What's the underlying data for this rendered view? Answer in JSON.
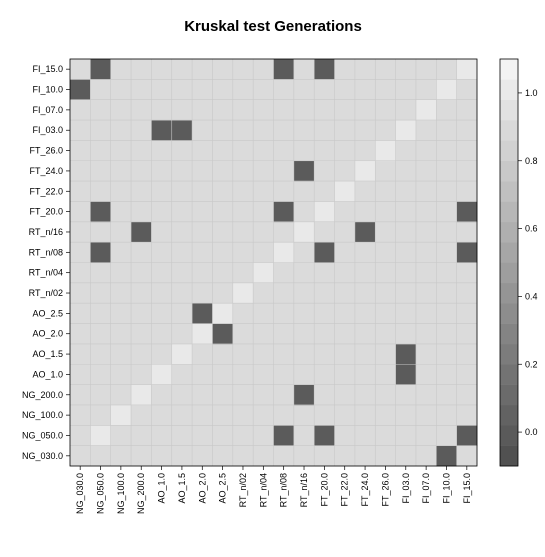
{
  "chart_data": {
    "type": "heatmap",
    "title": "Kruskal test Generations",
    "xlabel": "",
    "ylabel": "",
    "x_categories": [
      "NG_030.0",
      "NG_050.0",
      "NG_100.0",
      "NG_200.0",
      "AO_1.0",
      "AO_1.5",
      "AO_2.0",
      "AO_2.5",
      "RT_n/02",
      "RT_n/04",
      "RT_n/08",
      "RT_n/16",
      "FT_20.0",
      "FT_22.0",
      "FT_24.0",
      "FT_26.0",
      "FI_03.0",
      "FI_07.0",
      "FI_10.0",
      "FI_15.0"
    ],
    "y_categories": [
      "NG_030.0",
      "NG_050.0",
      "NG_100.0",
      "NG_200.0",
      "AO_1.0",
      "AO_1.5",
      "AO_2.0",
      "AO_2.5",
      "RT_n/02",
      "RT_n/04",
      "RT_n/08",
      "RT_n/16",
      "FT_20.0",
      "FT_22.0",
      "FT_24.0",
      "FT_26.0",
      "FI_03.0",
      "FI_07.0",
      "FI_10.0",
      "FI_15.0"
    ],
    "background_value": 0.9,
    "cells": [
      {
        "x": "NG_050.0",
        "y": "NG_050.0",
        "value": 1.0
      },
      {
        "x": "NG_100.0",
        "y": "NG_100.0",
        "value": 1.0
      },
      {
        "x": "NG_200.0",
        "y": "NG_200.0",
        "value": 1.0
      },
      {
        "x": "AO_1.0",
        "y": "AO_1.0",
        "value": 1.0
      },
      {
        "x": "AO_1.5",
        "y": "AO_1.5",
        "value": 1.0
      },
      {
        "x": "AO_2.0",
        "y": "AO_2.0",
        "value": 1.0
      },
      {
        "x": "AO_2.5",
        "y": "AO_2.5",
        "value": 1.0
      },
      {
        "x": "RT_n/02",
        "y": "RT_n/02",
        "value": 1.0
      },
      {
        "x": "RT_n/04",
        "y": "RT_n/04",
        "value": 1.0
      },
      {
        "x": "RT_n/08",
        "y": "RT_n/08",
        "value": 1.0
      },
      {
        "x": "RT_n/16",
        "y": "RT_n/16",
        "value": 1.0
      },
      {
        "x": "FT_20.0",
        "y": "FT_20.0",
        "value": 1.0
      },
      {
        "x": "FT_22.0",
        "y": "FT_22.0",
        "value": 1.0
      },
      {
        "x": "FT_24.0",
        "y": "FT_24.0",
        "value": 1.0
      },
      {
        "x": "FT_26.0",
        "y": "FT_26.0",
        "value": 1.0
      },
      {
        "x": "FI_03.0",
        "y": "FI_03.0",
        "value": 1.0
      },
      {
        "x": "FI_07.0",
        "y": "FI_07.0",
        "value": 1.0
      },
      {
        "x": "FI_10.0",
        "y": "FI_10.0",
        "value": 1.0
      },
      {
        "x": "FI_15.0",
        "y": "FI_15.0",
        "value": 1.0
      },
      {
        "x": "NG_050.0",
        "y": "FI_15.0",
        "value": 0.0
      },
      {
        "x": "RT_n/08",
        "y": "FI_15.0",
        "value": 0.0
      },
      {
        "x": "FT_20.0",
        "y": "FI_15.0",
        "value": 0.0
      },
      {
        "x": "NG_030.0",
        "y": "FI_10.0",
        "value": 0.0
      },
      {
        "x": "AO_1.0",
        "y": "FI_03.0",
        "value": 0.0
      },
      {
        "x": "AO_1.5",
        "y": "FI_03.0",
        "value": 0.0
      },
      {
        "x": "RT_n/16",
        "y": "FT_24.0",
        "value": 0.0
      },
      {
        "x": "NG_050.0",
        "y": "FT_20.0",
        "value": 0.0
      },
      {
        "x": "RT_n/08",
        "y": "FT_20.0",
        "value": 0.0
      },
      {
        "x": "FI_15.0",
        "y": "FT_20.0",
        "value": 0.0
      },
      {
        "x": "NG_200.0",
        "y": "RT_n/16",
        "value": 0.0
      },
      {
        "x": "FT_24.0",
        "y": "RT_n/16",
        "value": 0.0
      },
      {
        "x": "NG_050.0",
        "y": "RT_n/08",
        "value": 0.0
      },
      {
        "x": "FT_20.0",
        "y": "RT_n/08",
        "value": 0.0
      },
      {
        "x": "FI_15.0",
        "y": "RT_n/08",
        "value": 0.0
      },
      {
        "x": "AO_2.0",
        "y": "AO_2.5",
        "value": 0.0
      },
      {
        "x": "AO_2.5",
        "y": "AO_2.0",
        "value": 0.0
      },
      {
        "x": "FI_03.0",
        "y": "AO_1.5",
        "value": 0.0
      },
      {
        "x": "FI_03.0",
        "y": "AO_1.0",
        "value": 0.0
      },
      {
        "x": "RT_n/16",
        "y": "NG_200.0",
        "value": 0.0
      },
      {
        "x": "RT_n/08",
        "y": "NG_050.0",
        "value": 0.0
      },
      {
        "x": "FT_20.0",
        "y": "NG_050.0",
        "value": 0.0
      },
      {
        "x": "FI_15.0",
        "y": "NG_050.0",
        "value": 0.0
      },
      {
        "x": "FI_10.0",
        "y": "NG_030.0",
        "value": 0.0
      }
    ],
    "colorbar": {
      "range": [
        -0.1,
        1.1
      ],
      "ticks": [
        0.0,
        0.2,
        0.4,
        0.6,
        0.8,
        1.0
      ],
      "tick_labels": [
        "0.0",
        "0.2",
        "0.4",
        "0.6",
        "0.8",
        "1.0"
      ],
      "low_color": "#4d4d4d",
      "high_color": "#f7f7f7",
      "bands": 20
    },
    "grid": true,
    "legend": "right"
  }
}
